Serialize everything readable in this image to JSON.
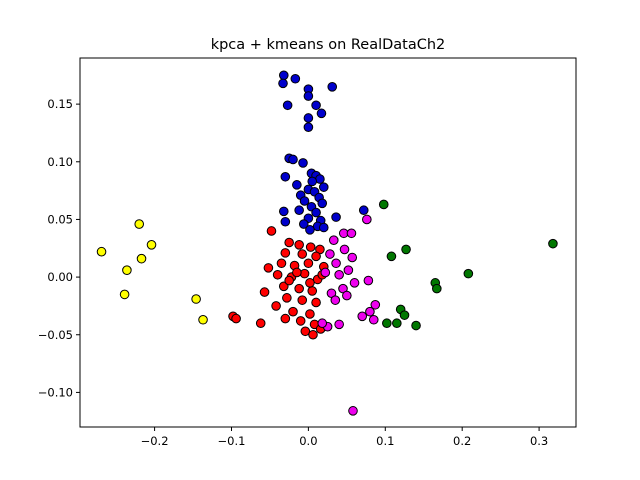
{
  "chart_data": {
    "type": "scatter",
    "title": "kpca + kmeans on RealDataCh2",
    "xlabel": "",
    "ylabel": "",
    "xlim": [
      -0.297,
      0.348
    ],
    "ylim": [
      -0.13,
      0.19
    ],
    "x_ticks": [
      -0.2,
      -0.1,
      0.0,
      0.1,
      0.2,
      0.3
    ],
    "x_tick_labels": [
      "−0.2",
      "−0.1",
      "0.0",
      "0.1",
      "0.2",
      "0.3"
    ],
    "y_ticks": [
      -0.1,
      -0.05,
      0.0,
      0.05,
      0.1,
      0.15
    ],
    "y_tick_labels": [
      "−0.10",
      "−0.05",
      "0.00",
      "0.05",
      "0.10",
      "0.15"
    ],
    "grid": false,
    "legend": "none",
    "marker_edge_color": "#000000",
    "clusters": [
      {
        "color": "#ffff00",
        "points": [
          [
            -0.269,
            0.022
          ],
          [
            -0.22,
            0.046
          ],
          [
            -0.204,
            0.028
          ],
          [
            -0.236,
            0.006
          ],
          [
            -0.217,
            0.016
          ],
          [
            -0.239,
            -0.015
          ],
          [
            -0.146,
            -0.019
          ],
          [
            -0.137,
            -0.037
          ]
        ]
      },
      {
        "color": "#0000cc",
        "points": [
          [
            -0.032,
            0.175
          ],
          [
            -0.033,
            0.168
          ],
          [
            -0.017,
            0.172
          ],
          [
            0.0,
            0.163
          ],
          [
            0.0,
            0.157
          ],
          [
            0.031,
            0.165
          ],
          [
            -0.027,
            0.149
          ],
          [
            0.01,
            0.149
          ],
          [
            0.017,
            0.142
          ],
          [
            0.0,
            0.138
          ],
          [
            0.0,
            0.13
          ],
          [
            -0.025,
            0.103
          ],
          [
            -0.02,
            0.102
          ],
          [
            -0.007,
            0.099
          ],
          [
            0.004,
            0.09
          ],
          [
            0.01,
            0.088
          ],
          [
            -0.03,
            0.087
          ],
          [
            0.015,
            0.085
          ],
          [
            0.005,
            0.083
          ],
          [
            -0.015,
            0.08
          ],
          [
            0.02,
            0.078
          ],
          [
            0.0,
            0.076
          ],
          [
            0.008,
            0.074
          ],
          [
            -0.01,
            0.071
          ],
          [
            0.014,
            0.069
          ],
          [
            -0.005,
            0.066
          ],
          [
            0.018,
            0.064
          ],
          [
            0.004,
            0.061
          ],
          [
            -0.012,
            0.058
          ],
          [
            0.01,
            0.056
          ],
          [
            -0.032,
            0.057
          ],
          [
            0.072,
            0.058
          ],
          [
            0.036,
            0.052
          ],
          [
            0.0,
            0.051
          ],
          [
            0.016,
            0.049
          ],
          [
            -0.03,
            0.048
          ],
          [
            -0.006,
            0.046
          ],
          [
            0.012,
            0.044
          ],
          [
            0.002,
            0.041
          ],
          [
            0.02,
            0.043
          ]
        ]
      },
      {
        "color": "#ff0000",
        "points": [
          [
            -0.048,
            0.04
          ],
          [
            -0.025,
            0.03
          ],
          [
            -0.012,
            0.028
          ],
          [
            0.003,
            0.026
          ],
          [
            0.015,
            0.024
          ],
          [
            -0.03,
            0.021
          ],
          [
            -0.008,
            0.02
          ],
          [
            0.01,
            0.018
          ],
          [
            -0.052,
            0.008
          ],
          [
            -0.035,
            0.012
          ],
          [
            -0.018,
            0.01
          ],
          [
            0.0,
            0.012
          ],
          [
            0.02,
            0.009
          ],
          [
            -0.04,
            0.002
          ],
          [
            -0.022,
            0.0
          ],
          [
            -0.005,
            0.003
          ],
          [
            0.012,
            -0.002
          ],
          [
            -0.032,
            -0.008
          ],
          [
            -0.012,
            -0.01
          ],
          [
            0.005,
            -0.012
          ],
          [
            -0.057,
            -0.013
          ],
          [
            -0.028,
            -0.018
          ],
          [
            -0.008,
            -0.02
          ],
          [
            0.01,
            -0.022
          ],
          [
            -0.042,
            -0.025
          ],
          [
            -0.02,
            -0.03
          ],
          [
            0.002,
            -0.032
          ],
          [
            -0.03,
            -0.036
          ],
          [
            -0.01,
            -0.038
          ],
          [
            0.008,
            -0.041
          ],
          [
            -0.098,
            -0.034
          ],
          [
            -0.094,
            -0.036
          ],
          [
            -0.062,
            -0.04
          ],
          [
            -0.004,
            -0.047
          ],
          [
            0.006,
            -0.05
          ],
          [
            0.016,
            -0.045
          ],
          [
            -0.015,
            0.004
          ],
          [
            0.002,
            -0.005
          ],
          [
            -0.025,
            -0.003
          ],
          [
            0.018,
            0.002
          ]
        ]
      },
      {
        "color": "#ee00ee",
        "points": [
          [
            0.076,
            0.05
          ],
          [
            0.046,
            0.038
          ],
          [
            0.056,
            0.038
          ],
          [
            0.033,
            0.032
          ],
          [
            0.047,
            0.024
          ],
          [
            0.057,
            0.017
          ],
          [
            0.036,
            0.012
          ],
          [
            0.052,
            0.006
          ],
          [
            0.04,
            0.002
          ],
          [
            0.078,
            -0.003
          ],
          [
            0.06,
            -0.005
          ],
          [
            0.045,
            -0.01
          ],
          [
            0.03,
            -0.014
          ],
          [
            0.05,
            -0.016
          ],
          [
            0.035,
            -0.02
          ],
          [
            0.087,
            -0.024
          ],
          [
            0.08,
            -0.03
          ],
          [
            0.07,
            -0.034
          ],
          [
            0.085,
            -0.037
          ],
          [
            0.04,
            -0.041
          ],
          [
            0.025,
            -0.043
          ],
          [
            0.018,
            -0.04
          ],
          [
            0.028,
            0.02
          ],
          [
            0.022,
            0.004
          ],
          [
            0.058,
            -0.116
          ]
        ]
      },
      {
        "color": "#007700",
        "points": [
          [
            0.098,
            0.063
          ],
          [
            0.127,
            0.024
          ],
          [
            0.108,
            0.018
          ],
          [
            0.318,
            0.029
          ],
          [
            0.208,
            0.003
          ],
          [
            0.165,
            -0.005
          ],
          [
            0.167,
            -0.01
          ],
          [
            0.12,
            -0.028
          ],
          [
            0.125,
            -0.033
          ],
          [
            0.102,
            -0.04
          ],
          [
            0.115,
            -0.04
          ],
          [
            0.14,
            -0.042
          ]
        ]
      }
    ]
  }
}
